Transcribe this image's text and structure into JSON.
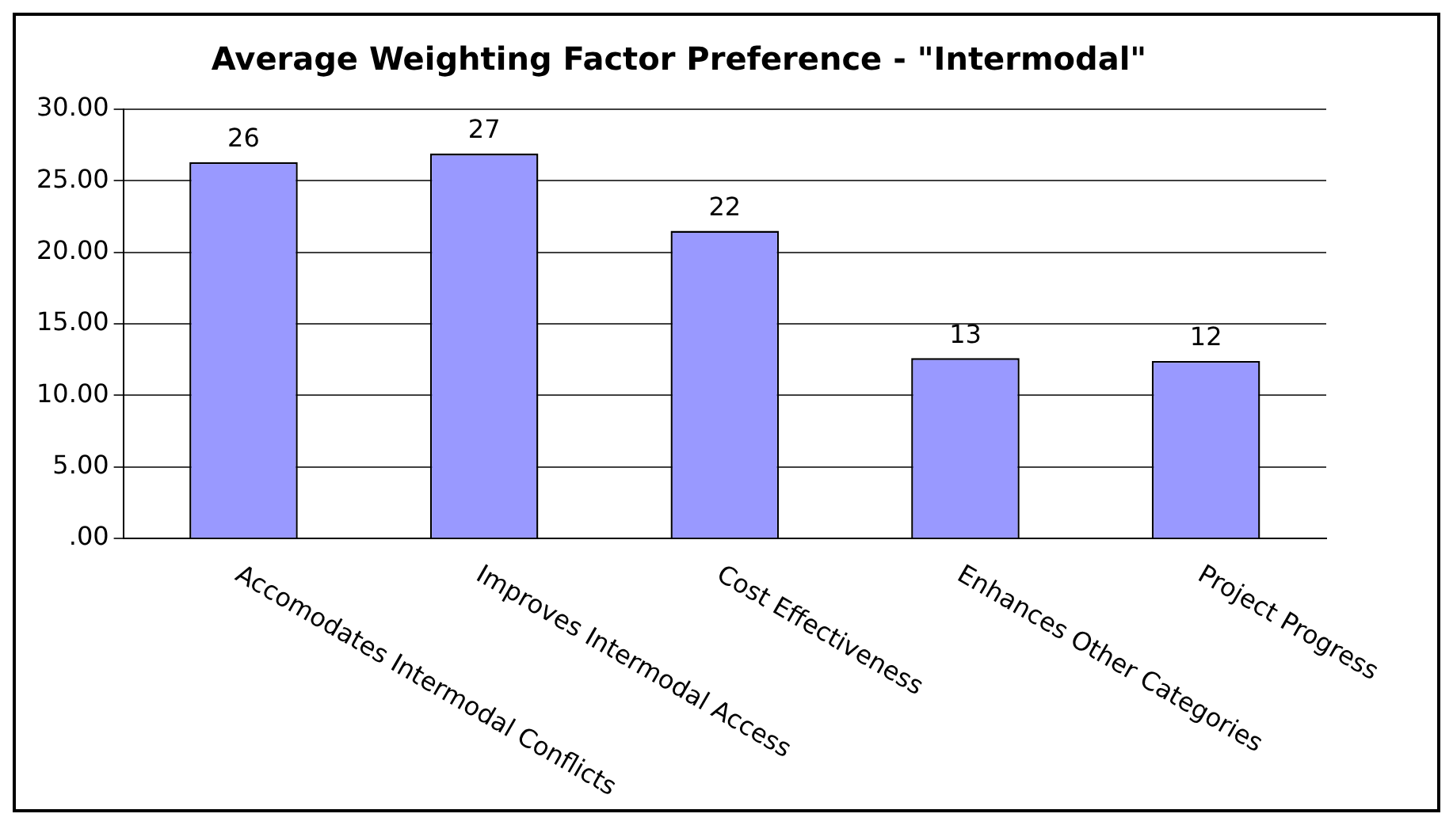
{
  "chart_data": {
    "type": "bar",
    "title": "Average Weighting Factor Preference - \"Intermodal\"",
    "categories": [
      "Accomodates Intermodal Conflicts",
      "Improves Intermodal Access",
      "Cost Effectiveness",
      "Enhances Other Categories",
      "Project Progress"
    ],
    "values": [
      26.3,
      26.9,
      21.5,
      12.6,
      12.4
    ],
    "value_labels": [
      "26",
      "27",
      "22",
      "13",
      "12"
    ],
    "color": "#9999ff",
    "ylim": [
      0,
      30
    ],
    "yticks": [
      {
        "value": 0,
        "label": ".00"
      },
      {
        "value": 5,
        "label": "5.00"
      },
      {
        "value": 10,
        "label": "10.00"
      },
      {
        "value": 15,
        "label": "15.00"
      },
      {
        "value": 20,
        "label": "20.00"
      },
      {
        "value": 25,
        "label": "25.00"
      },
      {
        "value": 30,
        "label": "30.00"
      }
    ],
    "grid": "y",
    "legend": false
  }
}
